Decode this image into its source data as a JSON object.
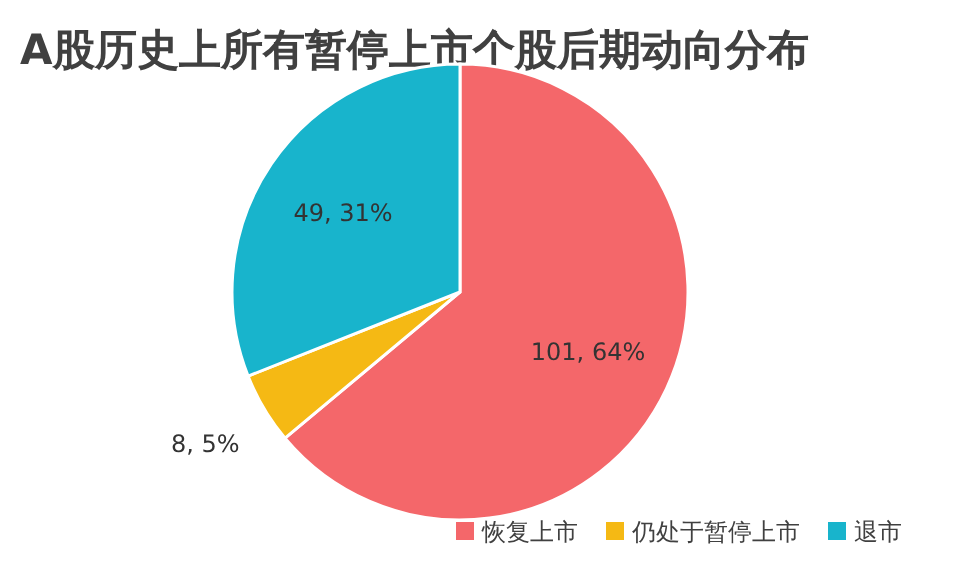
{
  "chart_data": {
    "type": "pie",
    "title": "A股历史上所有暂停上市个股后期动向分布",
    "categories": [
      "恢复上市",
      "仍处于暂停上市",
      "退市"
    ],
    "values": [
      101,
      8,
      49
    ],
    "colors": [
      "#f4676a",
      "#f5b914",
      "#18b4cc"
    ],
    "value_labels": [
      "101, 64%",
      "8, 5%",
      "49, 31%"
    ],
    "legend": "bottom right"
  }
}
